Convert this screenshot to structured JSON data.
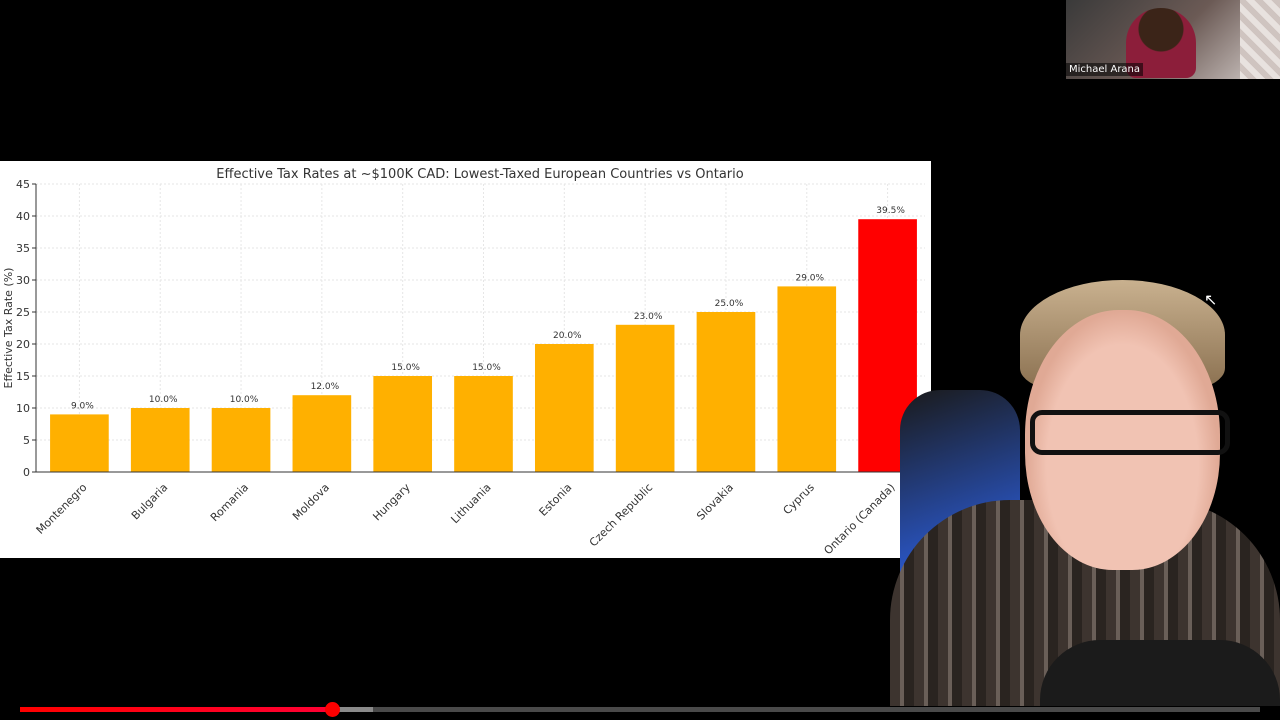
{
  "webcam": {
    "participant_name": "Michael Arana"
  },
  "player": {
    "progress_played": 0.252,
    "progress_buffered": 0.285
  },
  "chart_data": {
    "type": "bar",
    "title": "Effective Tax Rates at ~$100K CAD: Lowest-Taxed European Countries vs Ontario",
    "xlabel": "",
    "ylabel": "Effective Tax Rate (%)",
    "ylim": [
      0,
      45
    ],
    "yticks": [
      "0",
      "5",
      "10",
      "15",
      "20",
      "25",
      "30",
      "35",
      "40",
      "45"
    ],
    "categories": [
      "Montenegro",
      "Bulgaria",
      "Romania",
      "Moldova",
      "Hungary",
      "Lithuania",
      "Estonia",
      "Czech Republic",
      "Slovakia",
      "Cyprus",
      "Ontario (Canada)"
    ],
    "values": [
      9.0,
      10.0,
      10.0,
      12.0,
      15.0,
      15.0,
      20.0,
      23.0,
      25.0,
      29.0,
      39.5
    ],
    "value_labels": [
      "9.0%",
      "10.0%",
      "10.0%",
      "12.0%",
      "15.0%",
      "15.0%",
      "20.0%",
      "23.0%",
      "25.0%",
      "29.0%",
      "39.5%"
    ],
    "colors": [
      "#FFB000",
      "#FFB000",
      "#FFB000",
      "#FFB000",
      "#FFB000",
      "#FFB000",
      "#FFB000",
      "#FFB000",
      "#FFB000",
      "#FFB000",
      "#FF0000"
    ],
    "grid": true,
    "legend": "none"
  }
}
